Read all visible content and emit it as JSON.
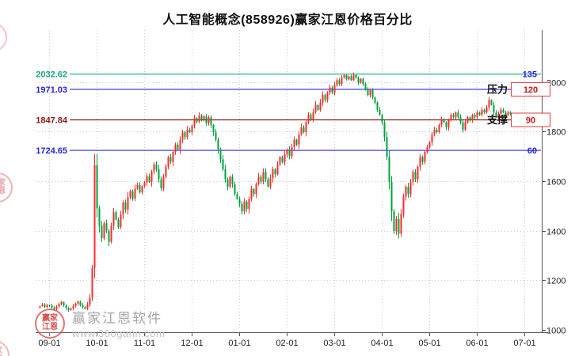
{
  "title": "人工智能概念(858926)赢家江恩价格百分比",
  "chart_data": {
    "type": "candlestick",
    "title": "人工智能概念(858926)赢家江恩价格百分比",
    "x_ticks": [
      "09-01",
      "10-01",
      "11-01",
      "12-01",
      "01-01",
      "02-01",
      "03-01",
      "04-01",
      "05-01",
      "06-01",
      "07-01"
    ],
    "y_ticks": [
      1000,
      1200,
      1400,
      1600,
      1800,
      2000
    ],
    "y_axis_side": "right",
    "ylim": [
      990,
      2360
    ],
    "colors": {
      "up": "#fd2b2b",
      "down": "#00a23c",
      "grid": "#c9c9c9",
      "axis": "#555555",
      "badge_border": "#e23b3b",
      "tick_text": "#222222"
    },
    "closes": [
      1095,
      1102,
      1092,
      1100,
      1098,
      1090,
      1084,
      1094,
      1104,
      1112,
      1098,
      1088,
      1080,
      1086,
      1096,
      1106,
      1114,
      1100,
      1092,
      1086,
      1102,
      1130,
      1250,
      1665,
      1490,
      1420,
      1370,
      1430,
      1400,
      1355,
      1420,
      1475,
      1445,
      1415,
      1465,
      1515,
      1485,
      1535,
      1560,
      1530,
      1570,
      1585,
      1555,
      1580,
      1595,
      1620,
      1598,
      1640,
      1668,
      1648,
      1608,
      1572,
      1618,
      1658,
      1698,
      1678,
      1718,
      1748,
      1728,
      1768,
      1798,
      1778,
      1808,
      1798,
      1825,
      1855,
      1840,
      1865,
      1850,
      1862,
      1835,
      1858,
      1828,
      1798,
      1768,
      1728,
      1688,
      1648,
      1608,
      1578,
      1618,
      1588,
      1548,
      1528,
      1508,
      1478,
      1518,
      1488,
      1528,
      1568,
      1548,
      1588,
      1618,
      1598,
      1638,
      1608,
      1578,
      1612,
      1648,
      1628,
      1668,
      1698,
      1678,
      1708,
      1728,
      1702,
      1738,
      1768,
      1748,
      1788,
      1818,
      1798,
      1838,
      1868,
      1848,
      1878,
      1908,
      1888,
      1918,
      1948,
      1928,
      1958,
      1978,
      1958,
      1988,
      2008,
      1992,
      2018,
      2028,
      2012,
      2024,
      2008,
      2028,
      2018,
      1998,
      2014,
      1992,
      1972,
      1948,
      1968,
      1938,
      1918,
      1888,
      1868,
      1838,
      1778,
      1698,
      1598,
      1478,
      1398,
      1448,
      1388,
      1468,
      1538,
      1578,
      1548,
      1598,
      1638,
      1608,
      1658,
      1698,
      1678,
      1718,
      1738,
      1758,
      1788,
      1808,
      1798,
      1828,
      1848,
      1838,
      1818,
      1848,
      1868,
      1858,
      1878,
      1858,
      1838,
      1808,
      1838,
      1858,
      1848,
      1868,
      1858,
      1878,
      1868,
      1888,
      1878,
      1898,
      1928,
      1908,
      1878,
      1858,
      1872,
      1888,
      1878,
      1868,
      1878,
      1872
    ],
    "gann_lines": [
      {
        "value": 2032.62,
        "left_label": "2032.62",
        "right_label": "135",
        "color": "#2ab28e",
        "left_label_color": "#17a383",
        "right_label_color": "#2424e0",
        "boxed": false,
        "tag": ""
      },
      {
        "value": 1971.03,
        "left_label": "1971.03",
        "right_label": "120",
        "color": "#2828e8",
        "left_label_color": "#2424e0",
        "right_label_color": "#c01818",
        "boxed": true,
        "tag": "压力"
      },
      {
        "value": 1847.84,
        "left_label": "1847.84",
        "right_label": "90",
        "color": "#8c1a12",
        "left_label_color": "#8c1a12",
        "right_label_color": "#c01818",
        "boxed": true,
        "tag": "支撑"
      },
      {
        "value": 1724.65,
        "left_label": "1724.65",
        "right_label": "60",
        "color": "#2828e8",
        "left_label_color": "#2424e0",
        "right_label_color": "#2424e0",
        "boxed": false,
        "tag": ""
      }
    ],
    "watermark": {
      "brand": "赢家江恩软件",
      "url": "www.360gann.com",
      "seal_line1": "赢家",
      "seal_line2": "江恩"
    }
  }
}
